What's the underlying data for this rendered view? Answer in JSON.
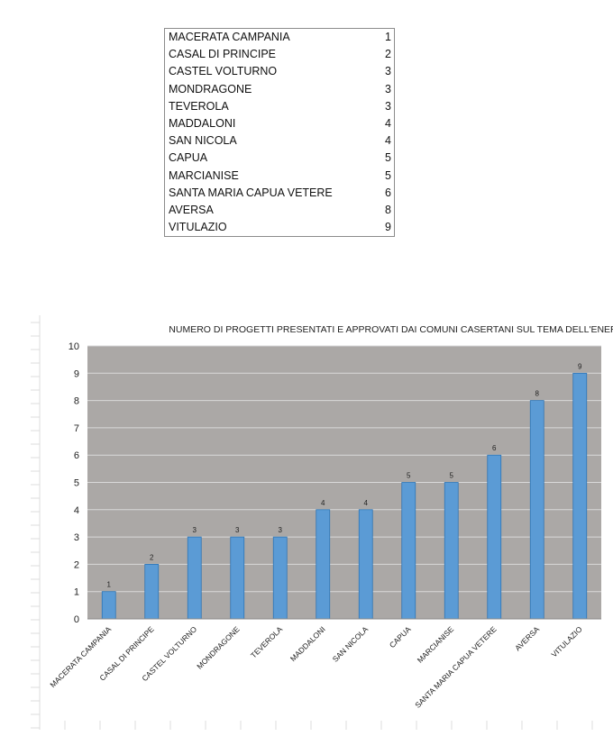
{
  "table": {
    "rows": [
      {
        "name": "MACERATA CAMPANIA",
        "value": 1
      },
      {
        "name": "CASAL DI PRINCIPE",
        "value": 2
      },
      {
        "name": "CASTEL VOLTURNO",
        "value": 3
      },
      {
        "name": "MONDRAGONE",
        "value": 3
      },
      {
        "name": "TEVEROLA",
        "value": 3
      },
      {
        "name": "MADDALONI",
        "value": 4
      },
      {
        "name": "SAN NICOLA",
        "value": 4
      },
      {
        "name": "CAPUA",
        "value": 5
      },
      {
        "name": "MARCIANISE",
        "value": 5
      },
      {
        "name": "SANTA MARIA CAPUA VETERE",
        "value": 6
      },
      {
        "name": "AVERSA",
        "value": 8
      },
      {
        "name": "VITULAZIO",
        "value": 9
      }
    ]
  },
  "chart_data": {
    "type": "bar",
    "title": "NUMERO DI PROGETTI PRESENTATI E APPROVATI DAI COMUNI CASERTANI SUL TEMA DELL'ENERGIA",
    "categories": [
      "MACERATA CAMPANIA",
      "CASAL DI PRINCIPE",
      "CASTEL VOLTURNO",
      "MONDRAGONE",
      "TEVEROLA",
      "MADDALONI",
      "SAN NICOLA",
      "CAPUA",
      "MARCIANISE",
      "SANTA MARIA CAPUA VETERE",
      "AVERSA",
      "VITULAZIO"
    ],
    "values": [
      1,
      2,
      3,
      3,
      3,
      4,
      4,
      5,
      5,
      6,
      8,
      9
    ],
    "yticks": [
      "0",
      "1",
      "2",
      "3",
      "4",
      "5",
      "6",
      "7",
      "8",
      "9",
      "10"
    ],
    "ylim": [
      0,
      10
    ],
    "grid": true,
    "data_labels": true,
    "legend": "none",
    "colors": {
      "bar": "#5b9bd5",
      "bar_edge": "#2e75b6",
      "plot_bg": "#aba8a6",
      "grid": "#d9d9d9"
    }
  }
}
